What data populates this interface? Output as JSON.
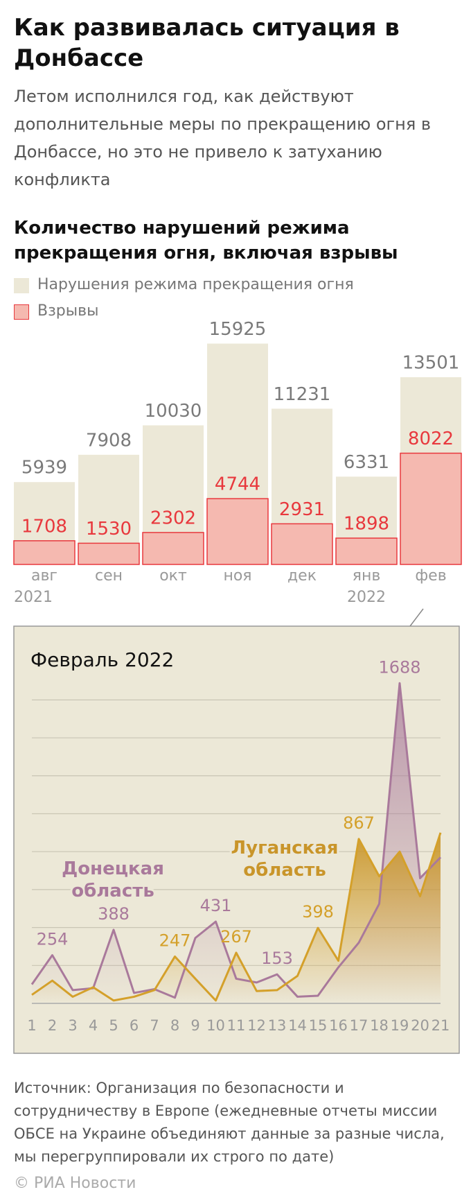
{
  "header": {
    "title": "Как развивалась ситуация в Донбассе",
    "subtitle": "Летом исполнился год, как действуют дополнительные меры по прекращению огня в Донбассе, но это не привело к затуханию конфликта"
  },
  "chart_data": [
    {
      "type": "bar",
      "title": "Количество нарушений режима прекращения огня, включая взрывы",
      "categories": [
        "авг",
        "сен",
        "окт",
        "ноя",
        "дек",
        "янв",
        "фев"
      ],
      "x_sublabels": [
        "2021",
        null,
        null,
        null,
        null,
        "2022",
        null
      ],
      "series": [
        {
          "name": "Нарушения режима прекращения огня",
          "color": "#ece8d7",
          "label_color": "#7a7a7a",
          "values": [
            5939,
            7908,
            10030,
            15925,
            11231,
            6331,
            13501
          ]
        },
        {
          "name": "Взрывы",
          "color": "#f5b9b0",
          "stroke": "#e8383d",
          "label_color": "#e8383d",
          "values": [
            1708,
            1530,
            2302,
            4744,
            2931,
            1898,
            8022
          ]
        }
      ],
      "ylim": [
        0,
        16000
      ]
    },
    {
      "type": "line",
      "title": "Февраль 2022",
      "x": [
        1,
        2,
        3,
        4,
        5,
        6,
        7,
        8,
        9,
        10,
        11,
        12,
        13,
        14,
        15,
        16,
        17,
        18,
        19,
        20,
        21
      ],
      "xticks": [
        1,
        2,
        3,
        4,
        5,
        6,
        7,
        8,
        9,
        10,
        11,
        12,
        13,
        14,
        15,
        16,
        17,
        18,
        19,
        20,
        21
      ],
      "series": [
        {
          "name": "Донецкая область",
          "color": "#a9799b",
          "values": [
            100,
            254,
            70,
            80,
            388,
            55,
            75,
            30,
            345,
            431,
            130,
            110,
            153,
            35,
            40,
            190,
            320,
            525,
            1688,
            660,
            770
          ],
          "value_labels": [
            null,
            "254",
            null,
            null,
            "388",
            null,
            null,
            null,
            null,
            "431",
            null,
            null,
            "153",
            null,
            null,
            null,
            null,
            null,
            "1688",
            null,
            null
          ]
        },
        {
          "name": "Луганская область",
          "color": "#d4a02a",
          "values": [
            45,
            120,
            35,
            85,
            15,
            35,
            70,
            247,
            130,
            15,
            267,
            65,
            70,
            145,
            398,
            225,
            867,
            670,
            800,
            565,
            900
          ],
          "value_labels": [
            null,
            null,
            null,
            null,
            null,
            null,
            null,
            "247",
            null,
            null,
            "267",
            null,
            null,
            null,
            "398",
            null,
            "867",
            null,
            null,
            null,
            null
          ]
        }
      ],
      "ylim": [
        0,
        1700
      ],
      "yticks": [
        0,
        200,
        400,
        600,
        800,
        1000,
        1200,
        1400,
        1600
      ],
      "grid": true
    }
  ],
  "source": "Источник: Организация по безопасности и сотрудничеству в Европе (ежедневные отчеты миссии ОБСЕ на Украине объединяют данные за разные числа, мы перегруппировали их строго по дате)",
  "credit": "© РИА Новости"
}
